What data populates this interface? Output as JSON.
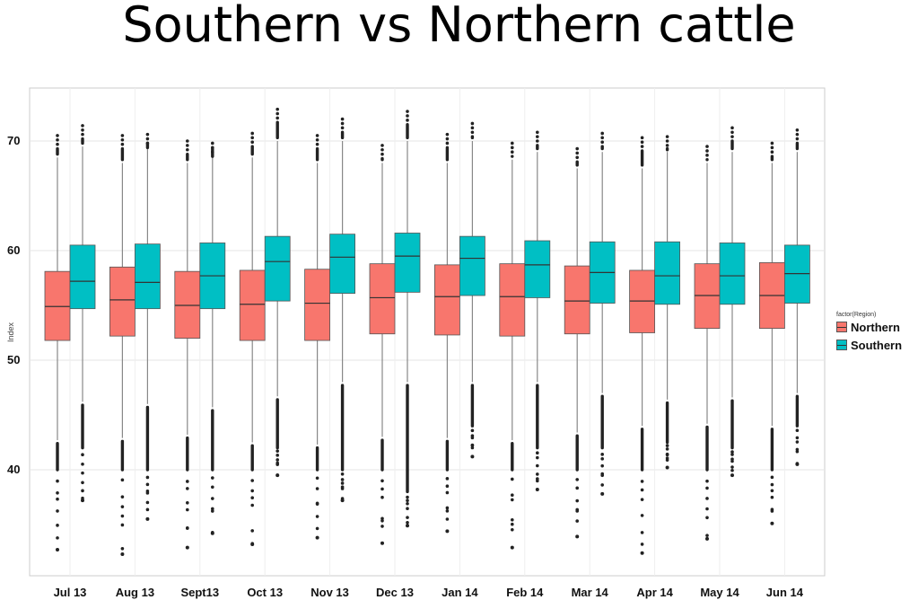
{
  "title": "Southern vs Northern cattle",
  "chart_data": {
    "type": "boxplot",
    "ylabel": "Index",
    "xlabel": "",
    "ylim": [
      30,
      75
    ],
    "yticks": [
      40,
      50,
      60,
      70
    ],
    "categories": [
      "Jul 13",
      "Aug 13",
      "Sept13",
      "Oct 13",
      "Nov 13",
      "Dec 13",
      "Jan 14",
      "Feb 14",
      "Mar 14",
      "Apr 14",
      "May 14",
      "Jun 14"
    ],
    "grid": true,
    "legend": {
      "title": "factor(Region)",
      "placement": "right"
    },
    "series": [
      {
        "name": "Northern",
        "color": "#F8766D",
        "boxes": [
          {
            "min": 42.7,
            "q1": 51.8,
            "median": 54.9,
            "q3": 58.1,
            "max": 68.5,
            "outliers_low": [
              32.7,
              40.0
            ],
            "outliers_high": [
              70.5
            ]
          },
          {
            "min": 42.9,
            "q1": 52.2,
            "median": 55.5,
            "q3": 58.5,
            "max": 68.0,
            "outliers_low": [
              32.3,
              40.0
            ],
            "outliers_high": [
              70.5
            ]
          },
          {
            "min": 43.2,
            "q1": 52.0,
            "median": 55.0,
            "q3": 58.1,
            "max": 68.0,
            "outliers_low": [
              32.9,
              40.0
            ],
            "outliers_high": [
              70.0
            ]
          },
          {
            "min": 42.5,
            "q1": 51.8,
            "median": 55.1,
            "q3": 58.2,
            "max": 68.5,
            "outliers_low": [
              33.2,
              40.0
            ],
            "outliers_high": [
              70.7
            ]
          },
          {
            "min": 42.3,
            "q1": 51.8,
            "median": 55.2,
            "q3": 58.3,
            "max": 68.0,
            "outliers_low": [
              33.8,
              40.0
            ],
            "outliers_high": [
              70.5
            ]
          },
          {
            "min": 43.0,
            "q1": 52.4,
            "median": 55.7,
            "q3": 58.8,
            "max": 68.0,
            "outliers_low": [
              33.3,
              40.0
            ],
            "outliers_high": [
              69.6
            ]
          },
          {
            "min": 42.9,
            "q1": 52.3,
            "median": 55.8,
            "q3": 58.7,
            "max": 68.0,
            "outliers_low": [
              34.4,
              40.0
            ],
            "outliers_high": [
              70.6
            ]
          },
          {
            "min": 42.7,
            "q1": 52.2,
            "median": 55.8,
            "q3": 58.8,
            "max": 68.3,
            "outliers_low": [
              32.9,
              40.0
            ],
            "outliers_high": [
              69.8
            ]
          },
          {
            "min": 43.4,
            "q1": 52.4,
            "median": 55.4,
            "q3": 58.6,
            "max": 67.5,
            "outliers_low": [
              33.9,
              40.0
            ],
            "outliers_high": [
              69.3
            ]
          },
          {
            "min": 44.0,
            "q1": 52.5,
            "median": 55.4,
            "q3": 58.2,
            "max": 67.5,
            "outliers_low": [
              32.4,
              40.0
            ],
            "outliers_high": [
              70.3
            ]
          },
          {
            "min": 44.2,
            "q1": 52.9,
            "median": 55.9,
            "q3": 58.8,
            "max": 68.0,
            "outliers_low": [
              33.7,
              40.0
            ],
            "outliers_high": [
              69.5
            ]
          },
          {
            "min": 44.0,
            "q1": 52.9,
            "median": 55.9,
            "q3": 58.9,
            "max": 68.0,
            "outliers_low": [
              35.1,
              40.0
            ],
            "outliers_high": [
              69.8
            ]
          }
        ]
      },
      {
        "name": "Southern",
        "color": "#00BFC4",
        "boxes": [
          {
            "min": 46.2,
            "q1": 54.7,
            "median": 57.2,
            "q3": 60.5,
            "max": 69.5,
            "outliers_low": [
              37.2,
              42.0
            ],
            "outliers_high": [
              71.4
            ]
          },
          {
            "min": 46.0,
            "q1": 54.7,
            "median": 57.1,
            "q3": 60.6,
            "max": 69.5,
            "outliers_low": [
              35.5,
              40.0
            ],
            "outliers_high": [
              70.6
            ]
          },
          {
            "min": 45.7,
            "q1": 54.7,
            "median": 57.7,
            "q3": 60.7,
            "max": 69.0,
            "outliers_low": [
              34.2,
              40.0
            ],
            "outliers_high": [
              69.8
            ]
          },
          {
            "min": 46.7,
            "q1": 55.4,
            "median": 59.0,
            "q3": 61.3,
            "max": 70.0,
            "outliers_low": [
              39.5,
              42.0
            ],
            "outliers_high": [
              72.9
            ]
          },
          {
            "min": 48.0,
            "q1": 56.1,
            "median": 59.4,
            "q3": 61.5,
            "max": 70.0,
            "outliers_low": [
              37.2,
              40.0
            ],
            "outliers_high": [
              72.0
            ]
          },
          {
            "min": 48.0,
            "q1": 56.2,
            "median": 59.5,
            "q3": 61.6,
            "max": 70.0,
            "outliers_low": [
              34.9,
              38.0
            ],
            "outliers_high": [
              72.7
            ]
          },
          {
            "min": 48.0,
            "q1": 55.9,
            "median": 59.3,
            "q3": 61.3,
            "max": 70.0,
            "outliers_low": [
              41.2,
              44.0
            ],
            "outliers_high": [
              71.6
            ]
          },
          {
            "min": 48.0,
            "q1": 55.7,
            "median": 58.7,
            "q3": 60.9,
            "max": 69.0,
            "outliers_low": [
              38.2,
              42.0
            ],
            "outliers_high": [
              70.8
            ]
          },
          {
            "min": 47.0,
            "q1": 55.2,
            "median": 58.0,
            "q3": 60.8,
            "max": 69.0,
            "outliers_low": [
              37.8,
              42.0
            ],
            "outliers_high": [
              70.7
            ]
          },
          {
            "min": 46.4,
            "q1": 55.1,
            "median": 57.7,
            "q3": 60.8,
            "max": 69.0,
            "outliers_low": [
              40.2,
              42.5
            ],
            "outliers_high": [
              70.4
            ]
          },
          {
            "min": 46.6,
            "q1": 55.1,
            "median": 57.7,
            "q3": 60.7,
            "max": 69.0,
            "outliers_low": [
              39.5,
              42.0
            ],
            "outliers_high": [
              71.2
            ]
          },
          {
            "min": 47.0,
            "q1": 55.2,
            "median": 57.9,
            "q3": 60.5,
            "max": 69.0,
            "outliers_low": [
              40.5,
              44.0
            ],
            "outliers_high": [
              71.0
            ]
          }
        ]
      }
    ]
  }
}
